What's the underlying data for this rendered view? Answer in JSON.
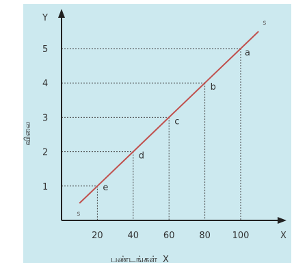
{
  "chart_data": {
    "type": "line",
    "title": "",
    "xlabel": "பண்டங்கள்",
    "xaxis_letter": "X",
    "ylabel": "விலை",
    "yaxis_letter": "Y",
    "xaxis_end_letter": "X",
    "x_ticks": [
      "20",
      "40",
      "60",
      "80",
      "100"
    ],
    "y_ticks": [
      "1",
      "2",
      "3",
      "4",
      "5"
    ],
    "xlim": [
      0,
      120
    ],
    "ylim": [
      0,
      6
    ],
    "grid": false,
    "series": [
      {
        "name": "S",
        "x": [
          10,
          20,
          40,
          60,
          80,
          100,
          110
        ],
        "y": [
          0.5,
          1,
          2,
          3,
          4,
          5,
          5.5
        ]
      }
    ],
    "points": [
      {
        "label": "a",
        "x": 100,
        "y": 5
      },
      {
        "label": "b",
        "x": 80,
        "y": 4
      },
      {
        "label": "c",
        "x": 60,
        "y": 3
      },
      {
        "label": "d",
        "x": 40,
        "y": 2
      },
      {
        "label": "e",
        "x": 20,
        "y": 1
      }
    ],
    "line_end_labels": [
      "s",
      "s"
    ],
    "colors": {
      "line": "#c0504d",
      "background": "#cce9ef",
      "axis": "#222222"
    }
  }
}
